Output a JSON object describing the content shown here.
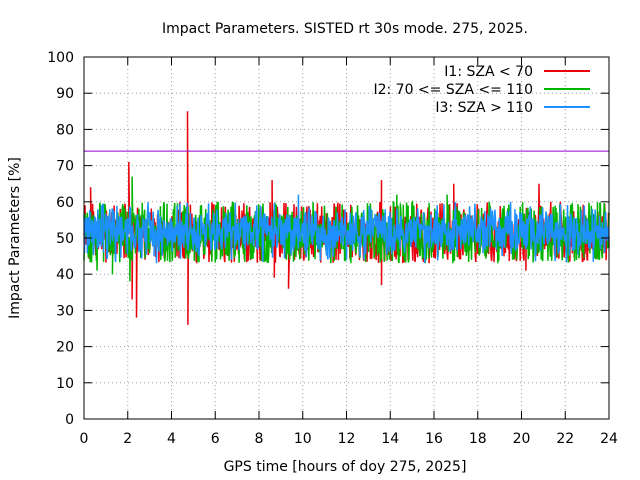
{
  "chart_data": {
    "type": "line",
    "title": "Impact Parameters. SISTED rt 30s mode. 275, 2025.",
    "xlabel": "GPS time [hours of doy 275, 2025]",
    "ylabel": "Impact Parameters [%]",
    "xlim": [
      0,
      24
    ],
    "ylim": [
      0,
      100
    ],
    "xticks": [
      0,
      2,
      4,
      6,
      8,
      10,
      12,
      14,
      16,
      18,
      20,
      22,
      24
    ],
    "yticks": [
      0,
      10,
      20,
      30,
      40,
      50,
      60,
      70,
      80,
      90,
      100
    ],
    "grid": true,
    "legend_position": "top-right",
    "threshold": {
      "value": 74,
      "color": "#9400d3"
    },
    "series": [
      {
        "name": "I1: SZA < 70",
        "color": "#e8000b",
        "mean": 51,
        "spread": 4.5,
        "spikes": [
          [
            0.3,
            64
          ],
          [
            2.05,
            71
          ],
          [
            2.2,
            33
          ],
          [
            2.4,
            28
          ],
          [
            4.73,
            85
          ],
          [
            4.75,
            26
          ],
          [
            8.6,
            66
          ],
          [
            8.7,
            39
          ],
          [
            9.35,
            36
          ],
          [
            13.6,
            66
          ],
          [
            13.6,
            37
          ],
          [
            16.9,
            65
          ],
          [
            20.8,
            65
          ],
          [
            20.2,
            41
          ]
        ]
      },
      {
        "name": "I2: 70 <= SZA <= 110",
        "color": "#00b400",
        "mean": 51,
        "spread": 5,
        "spikes": [
          [
            1.3,
            40
          ],
          [
            2.1,
            38
          ],
          [
            2.2,
            67
          ],
          [
            0.6,
            41
          ],
          [
            12.2,
            43
          ],
          [
            14.3,
            62
          ],
          [
            16.6,
            62
          ]
        ]
      },
      {
        "name": "I3: SZA > 110",
        "color": "#1e90ff",
        "mean": 52,
        "spread": 3.5,
        "spikes": [
          [
            0.8,
            59
          ],
          [
            3.2,
            45
          ],
          [
            9.8,
            62
          ],
          [
            12.8,
            44
          ],
          [
            19.5,
            60
          ]
        ]
      }
    ]
  }
}
